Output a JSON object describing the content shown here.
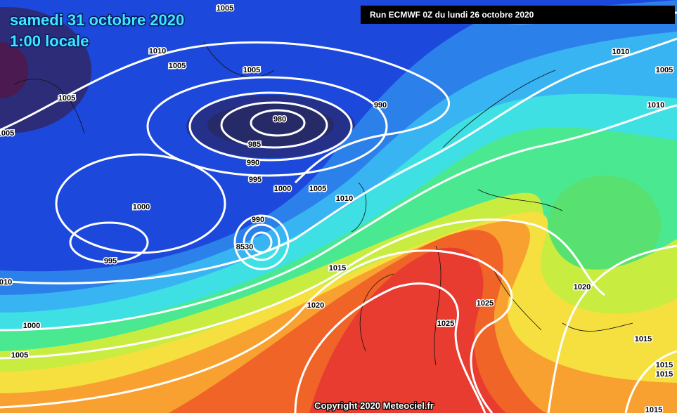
{
  "header": {
    "date": "samedi 31 octobre 2020",
    "time": "1:00 locale",
    "run": "Run ECMWF 0Z du lundi 26 octobre 2020"
  },
  "isobar_labels": [
    "1005",
    "1010",
    "1005",
    "1005",
    "1005",
    "1005",
    "980",
    "985",
    "990",
    "995",
    "1000",
    "1005",
    "1010",
    "990",
    "1000",
    "990",
    "8530",
    "995",
    "1015",
    "1020",
    "1025",
    "1025",
    "1020",
    "1015",
    "1010",
    "1005",
    "1010",
    "010",
    "1000",
    "1005",
    "1015",
    "1015",
    "1015"
  ],
  "footer": {
    "copyright": "Copyright 2020 Meteociel.fr"
  }
}
